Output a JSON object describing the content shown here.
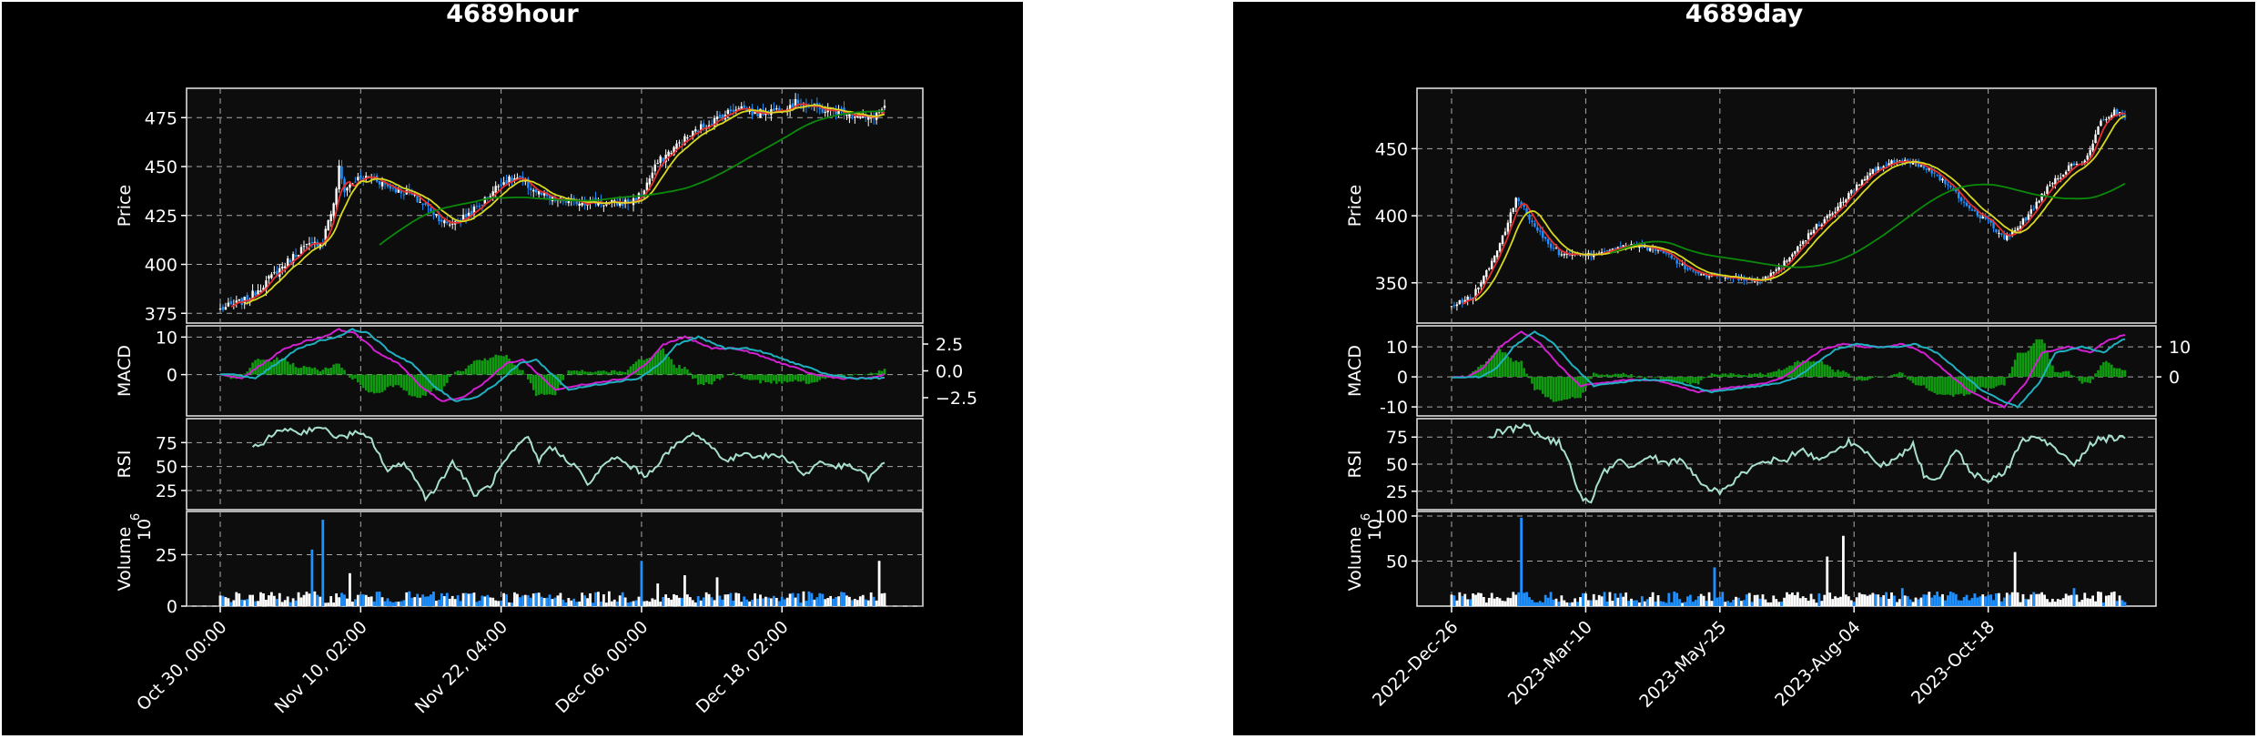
{
  "figures": [
    {
      "id": "hour",
      "title": "4689hour",
      "chart_data": {
        "type": "candlestick",
        "title": "4689hour",
        "panels": {
          "price": {
            "ylabel": "Price",
            "ylim": [
              370,
              490
            ],
            "yticks": [
              375,
              400,
              425,
              450,
              475
            ]
          },
          "macd": {
            "ylabel": "MACD",
            "ylim": [
              -11,
              13
            ],
            "yticks": [
              0,
              10
            ],
            "right_ylim": [
              -4.2,
              4.2
            ],
            "right_yticks": [
              -2.5,
              0.0,
              2.5
            ],
            "right_tick_labels": [
              "−2.5",
              "0.0",
              "2.5"
            ]
          },
          "rsi": {
            "ylabel": "RSI",
            "ylim": [
              5,
              100
            ],
            "yticks": [
              25,
              50,
              75
            ]
          },
          "volume": {
            "ylabel": "Volume",
            "multiplier_label": "10",
            "multiplier_exp": "6",
            "ylim": [
              0,
              46
            ],
            "yticks": [
              0,
              25
            ]
          }
        },
        "x_ticks": [
          {
            "i": 0,
            "label": "Oct 30, 00:00"
          },
          {
            "i": 52,
            "label": "Nov 10, 02:00"
          },
          {
            "i": 104,
            "label": "Nov 22, 04:00"
          },
          {
            "i": 156,
            "label": "Dec 06, 00:00"
          },
          {
            "i": 208,
            "label": "Dec 18, 02:00"
          }
        ],
        "n": 247,
        "close_keypoints": [
          [
            0,
            377
          ],
          [
            10,
            382
          ],
          [
            20,
            395
          ],
          [
            30,
            408
          ],
          [
            38,
            412
          ],
          [
            40,
            423
          ],
          [
            42,
            430
          ],
          [
            44,
            449
          ],
          [
            46,
            438
          ],
          [
            50,
            443
          ],
          [
            56,
            445
          ],
          [
            62,
            440
          ],
          [
            70,
            436
          ],
          [
            78,
            428
          ],
          [
            84,
            420
          ],
          [
            90,
            424
          ],
          [
            96,
            430
          ],
          [
            104,
            442
          ],
          [
            110,
            444
          ],
          [
            116,
            438
          ],
          [
            122,
            433
          ],
          [
            130,
            432
          ],
          [
            138,
            432
          ],
          [
            146,
            431
          ],
          [
            152,
            432
          ],
          [
            156,
            436
          ],
          [
            162,
            452
          ],
          [
            170,
            462
          ],
          [
            178,
            470
          ],
          [
            186,
            476
          ],
          [
            192,
            481
          ],
          [
            198,
            477
          ],
          [
            206,
            479
          ],
          [
            214,
            483
          ],
          [
            222,
            479
          ],
          [
            232,
            478
          ],
          [
            240,
            474
          ],
          [
            246,
            480
          ]
        ],
        "moving_averages": [
          {
            "period": 5,
            "color": "#e63030"
          },
          {
            "period": 10,
            "color": "#d8d820"
          },
          {
            "period": 60,
            "color": "#0a8a0a"
          }
        ],
        "macd_keypoints": [
          [
            0,
            0
          ],
          [
            8,
            -1
          ],
          [
            16,
            3
          ],
          [
            24,
            7
          ],
          [
            32,
            9
          ],
          [
            38,
            10
          ],
          [
            44,
            12
          ],
          [
            50,
            11
          ],
          [
            58,
            6
          ],
          [
            66,
            3
          ],
          [
            74,
            -3
          ],
          [
            82,
            -7
          ],
          [
            90,
            -6
          ],
          [
            98,
            -2
          ],
          [
            106,
            3
          ],
          [
            112,
            4
          ],
          [
            118,
            0
          ],
          [
            124,
            -4
          ],
          [
            132,
            -3
          ],
          [
            140,
            -2
          ],
          [
            150,
            -1
          ],
          [
            158,
            3
          ],
          [
            164,
            8
          ],
          [
            172,
            10
          ],
          [
            182,
            7
          ],
          [
            190,
            7
          ],
          [
            196,
            6
          ],
          [
            204,
            4
          ],
          [
            212,
            2
          ],
          [
            220,
            0
          ],
          [
            230,
            -1
          ],
          [
            240,
            -1
          ],
          [
            246,
            0
          ]
        ],
        "signal_lag": 5,
        "hist_scale": 1.6,
        "rsi_keypoints": [
          [
            12,
            68
          ],
          [
            18,
            80
          ],
          [
            24,
            90
          ],
          [
            30,
            85
          ],
          [
            36,
            92
          ],
          [
            44,
            80
          ],
          [
            50,
            85
          ],
          [
            56,
            78
          ],
          [
            62,
            45
          ],
          [
            68,
            55
          ],
          [
            72,
            38
          ],
          [
            76,
            18
          ],
          [
            80,
            28
          ],
          [
            86,
            55
          ],
          [
            90,
            40
          ],
          [
            94,
            20
          ],
          [
            100,
            30
          ],
          [
            104,
            50
          ],
          [
            110,
            70
          ],
          [
            114,
            80
          ],
          [
            118,
            55
          ],
          [
            122,
            72
          ],
          [
            126,
            62
          ],
          [
            132,
            50
          ],
          [
            136,
            30
          ],
          [
            140,
            45
          ],
          [
            146,
            60
          ],
          [
            152,
            50
          ],
          [
            158,
            40
          ],
          [
            164,
            60
          ],
          [
            170,
            75
          ],
          [
            176,
            85
          ],
          [
            182,
            70
          ],
          [
            188,
            55
          ],
          [
            194,
            65
          ],
          [
            200,
            60
          ],
          [
            206,
            62
          ],
          [
            212,
            55
          ],
          [
            216,
            40
          ],
          [
            222,
            55
          ],
          [
            228,
            50
          ],
          [
            234,
            50
          ],
          [
            240,
            38
          ],
          [
            246,
            53
          ]
        ],
        "volume_spikes": [
          [
            34,
            27.5
          ],
          [
            38,
            42
          ],
          [
            48,
            16
          ],
          [
            156,
            22
          ],
          [
            162,
            11
          ],
          [
            172,
            15
          ],
          [
            184,
            14
          ],
          [
            244,
            22
          ]
        ],
        "volume_base": 4,
        "seed": 7
      }
    },
    {
      "id": "day",
      "title": "4689day",
      "chart_data": {
        "type": "candlestick",
        "title": "4689day",
        "panels": {
          "price": {
            "ylabel": "Price",
            "ylim": [
              320,
              495
            ],
            "yticks": [
              350,
              400,
              450
            ]
          },
          "macd": {
            "ylabel": "MACD",
            "ylim": [
              -13,
              17
            ],
            "yticks": [
              -10,
              0,
              10
            ],
            "right_ylim": [
              -13,
              17
            ],
            "right_yticks": [
              0,
              10
            ],
            "right_tick_labels": [
              "0",
              "10"
            ]
          },
          "rsi": {
            "ylabel": "RSI",
            "ylim": [
              8,
              92
            ],
            "yticks": [
              25,
              50,
              75
            ]
          },
          "volume": {
            "ylabel": "Volume",
            "multiplier_label": "10",
            "multiplier_exp": "6",
            "ylim": [
              0,
              105
            ],
            "yticks": [
              50,
              100
            ]
          }
        },
        "x_ticks": [
          {
            "i": 0,
            "label": "2022-Dec-26"
          },
          {
            "i": 50,
            "label": "2023-Mar-10"
          },
          {
            "i": 100,
            "label": "2023-May-25"
          },
          {
            "i": 150,
            "label": "2023-Aug-04"
          },
          {
            "i": 200,
            "label": "2023-Oct-18"
          }
        ],
        "n": 252,
        "close_keypoints": [
          [
            0,
            332
          ],
          [
            8,
            340
          ],
          [
            14,
            362
          ],
          [
            20,
            388
          ],
          [
            24,
            414
          ],
          [
            28,
            402
          ],
          [
            34,
            384
          ],
          [
            40,
            372
          ],
          [
            50,
            370
          ],
          [
            60,
            376
          ],
          [
            70,
            378
          ],
          [
            80,
            372
          ],
          [
            86,
            362
          ],
          [
            94,
            356
          ],
          [
            104,
            354
          ],
          [
            114,
            352
          ],
          [
            122,
            360
          ],
          [
            128,
            375
          ],
          [
            136,
            392
          ],
          [
            142,
            402
          ],
          [
            150,
            420
          ],
          [
            156,
            432
          ],
          [
            164,
            440
          ],
          [
            172,
            440
          ],
          [
            180,
            432
          ],
          [
            188,
            416
          ],
          [
            194,
            404
          ],
          [
            200,
            396
          ],
          [
            206,
            382
          ],
          [
            214,
            398
          ],
          [
            222,
            420
          ],
          [
            230,
            436
          ],
          [
            236,
            440
          ],
          [
            242,
            470
          ],
          [
            247,
            478
          ],
          [
            251,
            474
          ]
        ],
        "moving_averages": [
          {
            "period": 5,
            "color": "#e63030"
          },
          {
            "period": 10,
            "color": "#d8d820"
          },
          {
            "period": 60,
            "color": "#0a8a0a"
          }
        ],
        "macd_keypoints": [
          [
            0,
            0
          ],
          [
            6,
            0
          ],
          [
            12,
            3
          ],
          [
            18,
            10
          ],
          [
            26,
            15
          ],
          [
            32,
            12
          ],
          [
            40,
            4
          ],
          [
            48,
            -3
          ],
          [
            56,
            -2
          ],
          [
            66,
            -1
          ],
          [
            76,
            -1
          ],
          [
            84,
            -3
          ],
          [
            92,
            -5
          ],
          [
            100,
            -4
          ],
          [
            110,
            -3
          ],
          [
            118,
            -2
          ],
          [
            124,
            0
          ],
          [
            130,
            4
          ],
          [
            138,
            9
          ],
          [
            146,
            11
          ],
          [
            154,
            10
          ],
          [
            162,
            10
          ],
          [
            168,
            11
          ],
          [
            176,
            8
          ],
          [
            184,
            2
          ],
          [
            192,
            -4
          ],
          [
            200,
            -8
          ],
          [
            206,
            -10
          ],
          [
            214,
            -2
          ],
          [
            220,
            8
          ],
          [
            230,
            10
          ],
          [
            238,
            8
          ],
          [
            244,
            12
          ],
          [
            251,
            14
          ]
        ],
        "signal_lag": 5,
        "hist_scale": 1.6,
        "rsi_keypoints": [
          [
            14,
            76
          ],
          [
            18,
            80
          ],
          [
            22,
            82
          ],
          [
            28,
            86
          ],
          [
            34,
            74
          ],
          [
            40,
            70
          ],
          [
            44,
            50
          ],
          [
            48,
            20
          ],
          [
            52,
            14
          ],
          [
            56,
            40
          ],
          [
            62,
            55
          ],
          [
            68,
            45
          ],
          [
            74,
            58
          ],
          [
            80,
            50
          ],
          [
            86,
            56
          ],
          [
            92,
            35
          ],
          [
            96,
            28
          ],
          [
            100,
            25
          ],
          [
            106,
            36
          ],
          [
            112,
            48
          ],
          [
            118,
            54
          ],
          [
            124,
            52
          ],
          [
            130,
            65
          ],
          [
            136,
            55
          ],
          [
            142,
            60
          ],
          [
            148,
            72
          ],
          [
            154,
            60
          ],
          [
            160,
            50
          ],
          [
            166,
            55
          ],
          [
            172,
            70
          ],
          [
            176,
            40
          ],
          [
            182,
            36
          ],
          [
            188,
            65
          ],
          [
            194,
            40
          ],
          [
            200,
            36
          ],
          [
            206,
            40
          ],
          [
            212,
            70
          ],
          [
            218,
            76
          ],
          [
            222,
            68
          ],
          [
            228,
            60
          ],
          [
            232,
            50
          ],
          [
            236,
            62
          ],
          [
            240,
            72
          ],
          [
            246,
            74
          ],
          [
            251,
            74
          ]
        ],
        "volume_spikes": [
          [
            26,
            98
          ],
          [
            50,
            14
          ],
          [
            98,
            43
          ],
          [
            140,
            55
          ],
          [
            146,
            78
          ],
          [
            168,
            20
          ],
          [
            210,
            60
          ],
          [
            232,
            20
          ]
        ],
        "volume_base": 9,
        "seed": 13
      }
    }
  ]
}
